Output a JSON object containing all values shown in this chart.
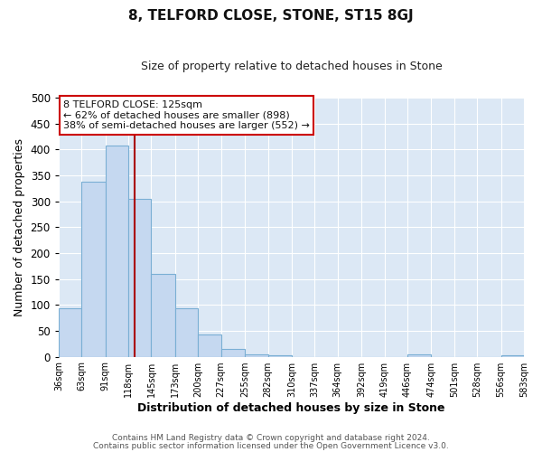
{
  "title": "8, TELFORD CLOSE, STONE, ST15 8GJ",
  "subtitle": "Size of property relative to detached houses in Stone",
  "xlabel": "Distribution of detached houses by size in Stone",
  "ylabel": "Number of detached properties",
  "bin_edges": [
    36,
    63,
    91,
    118,
    145,
    173,
    200,
    227,
    255,
    282,
    310,
    337,
    364,
    392,
    419,
    446,
    474,
    501,
    528,
    556,
    583
  ],
  "bar_heights": [
    93,
    338,
    407,
    305,
    160,
    93,
    43,
    15,
    5,
    2,
    0,
    0,
    0,
    0,
    0,
    5,
    0,
    0,
    0,
    2
  ],
  "bar_color": "#c5d8f0",
  "bar_edge_color": "#7aafd4",
  "vline_x": 125,
  "vline_color": "#aa0000",
  "ylim": [
    0,
    500
  ],
  "annotation_box_text": "8 TELFORD CLOSE: 125sqm\n← 62% of detached houses are smaller (898)\n38% of semi-detached houses are larger (552) →",
  "annotation_box_color": "#ffffff",
  "annotation_box_edge_color": "#cc0000",
  "footnote1": "Contains HM Land Registry data © Crown copyright and database right 2024.",
  "footnote2": "Contains public sector information licensed under the Open Government Licence v3.0.",
  "fig_background_color": "#ffffff",
  "plot_background_color": "#dce8f5",
  "grid_color": "#ffffff",
  "tick_labels": [
    "36sqm",
    "63sqm",
    "91sqm",
    "118sqm",
    "145sqm",
    "173sqm",
    "200sqm",
    "227sqm",
    "255sqm",
    "282sqm",
    "310sqm",
    "337sqm",
    "364sqm",
    "392sqm",
    "419sqm",
    "446sqm",
    "474sqm",
    "501sqm",
    "528sqm",
    "556sqm",
    "583sqm"
  ],
  "yticks": [
    0,
    50,
    100,
    150,
    200,
    250,
    300,
    350,
    400,
    450,
    500
  ]
}
